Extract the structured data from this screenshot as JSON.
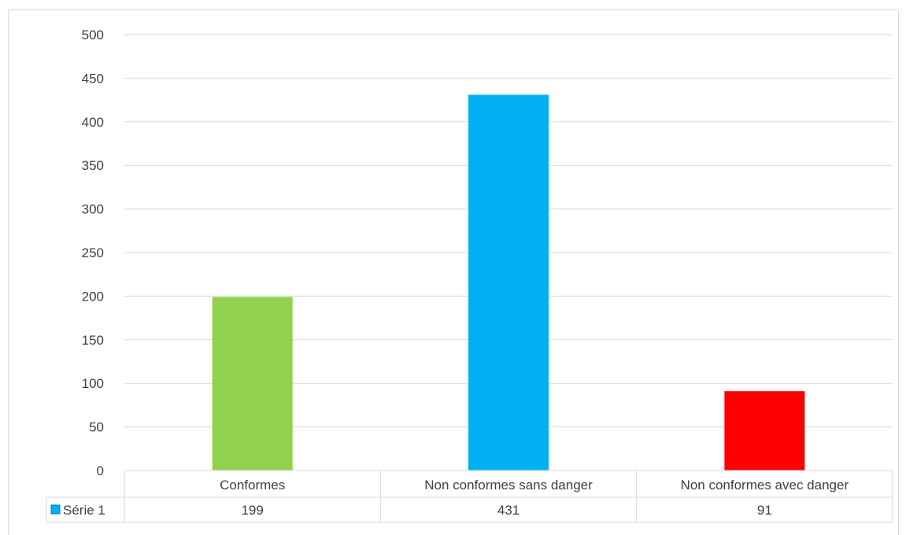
{
  "chart_data": {
    "type": "bar",
    "categories": [
      "Conformes",
      "Non conformes sans danger",
      "Non conformes avec danger"
    ],
    "series": [
      {
        "name": "Série 1",
        "values": [
          199,
          431,
          91
        ],
        "colors": [
          "#92d050",
          "#00b0f0",
          "#ff0000"
        ]
      }
    ],
    "ylim": [
      0,
      500
    ],
    "yticks": [
      0,
      50,
      100,
      150,
      200,
      250,
      300,
      350,
      400,
      450,
      500
    ],
    "grid": true,
    "data_table": true,
    "legend_key_color": "#00b0f0"
  }
}
